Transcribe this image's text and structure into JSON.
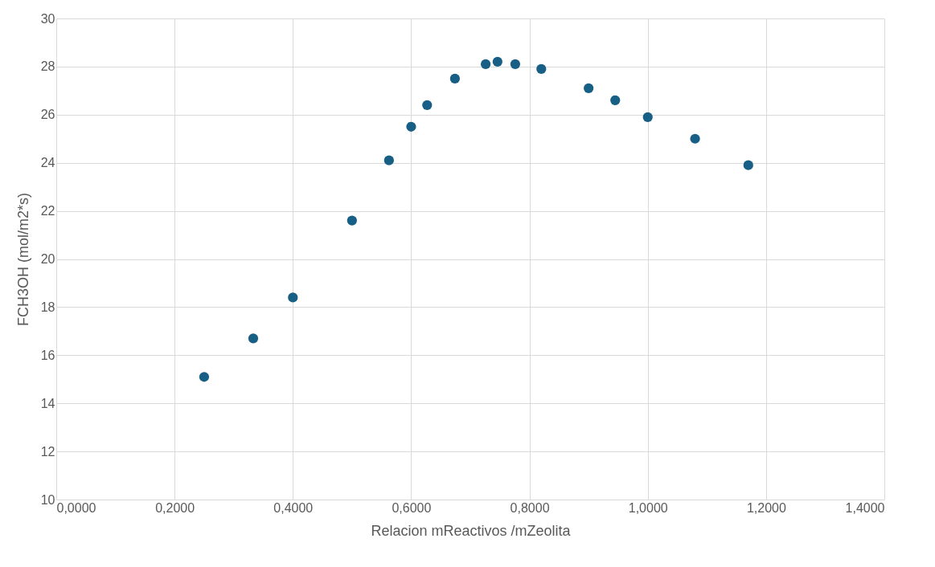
{
  "chart_data": {
    "type": "scatter",
    "xlabel": "Relacion mReactivos /mZeolita",
    "ylabel": "FCH3OH (mol/m2*s)",
    "x": [
      0.25,
      0.333,
      0.4,
      0.5,
      0.5625,
      0.6,
      0.627,
      0.674,
      0.726,
      0.746,
      0.776,
      0.82,
      0.9,
      0.945,
      1.0,
      1.08,
      1.17
    ],
    "series": [
      {
        "color": "#175f84",
        "values": [
          15.1,
          16.7,
          18.4,
          21.6,
          24.1,
          25.5,
          26.4,
          27.5,
          28.1,
          28.2,
          28.1,
          27.9,
          27.1,
          26.6,
          25.9,
          25.0,
          23.9
        ]
      }
    ],
    "xlim": [
      0,
      1.4
    ],
    "ylim": [
      10,
      30
    ],
    "xticks": [
      {
        "value": 0,
        "label": "0,0000"
      },
      {
        "value": 0.2,
        "label": "0,2000"
      },
      {
        "value": 0.4,
        "label": "0,4000"
      },
      {
        "value": 0.6,
        "label": "0,6000"
      },
      {
        "value": 0.8,
        "label": "0,8000"
      },
      {
        "value": 1.0,
        "label": "1,0000"
      },
      {
        "value": 1.2,
        "label": "1,2000"
      },
      {
        "value": 1.4,
        "label": "1,4000"
      }
    ],
    "yticks": [
      10,
      12,
      14,
      16,
      18,
      20,
      22,
      24,
      26,
      28,
      30
    ],
    "grid": true,
    "marker": "circle"
  }
}
